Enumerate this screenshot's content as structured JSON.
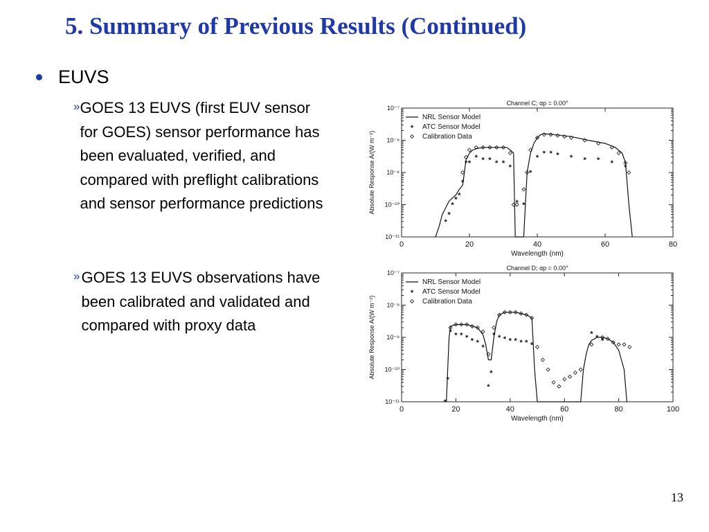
{
  "slide": {
    "title": "5. Summary of Previous Results (Continued)",
    "bullet": "EUVS",
    "subbullets": [
      {
        "marker": "»",
        "text": "GOES 13 EUVS (first EUV sensor for GOES) sensor performance has been evaluated, verified, and compared with preflight calibrations and sensor performance predictions"
      },
      {
        "marker": "»",
        "text": "GOES 13 EUVS observations have been calibrated and validated and compared with proxy data"
      }
    ],
    "page_number": "13"
  },
  "chart_data": [
    {
      "type": "line",
      "title": "Channel C; αp = 0.00°",
      "xlabel": "Wavelength (nm)",
      "ylabel": "Absolute Response A/(W m⁻²)",
      "xlim": [
        0,
        80
      ],
      "ylim": [
        1e-11,
        1e-07
      ],
      "y_scale": "log",
      "x_ticks": [
        "0",
        "20",
        "40",
        "60",
        "80"
      ],
      "y_ticks": [
        "10⁻⁷",
        "10⁻⁸",
        "10⁻⁹",
        "10⁻¹⁰",
        "10⁻¹¹"
      ],
      "legend_position": "top-left",
      "series": [
        {
          "name": "NRL Sensor Model",
          "style": "line",
          "x": [
            10,
            11,
            12,
            13,
            14,
            16,
            17,
            18,
            18.5,
            19,
            20,
            21,
            22,
            24,
            26,
            28,
            30,
            31,
            32,
            33,
            33.5,
            34,
            36,
            36.5,
            37,
            38,
            39,
            40,
            41,
            42,
            45,
            50,
            55,
            60,
            63,
            65,
            66,
            67,
            68
          ],
          "y": [
            1e-11,
            2e-11,
            5e-11,
            8e-11,
            1.3e-10,
            2e-10,
            3e-10,
            4e-10,
            1e-09,
            2.5e-09,
            4e-09,
            5e-09,
            5.5e-09,
            6e-09,
            6e-09,
            6e-09,
            6e-09,
            6e-09,
            5e-09,
            4e-09,
            1e-11,
            1e-11,
            1e-11,
            1e-10,
            1e-09,
            4e-09,
            8e-09,
            1.2e-08,
            1.5e-08,
            1.6e-08,
            1.5e-08,
            1.3e-08,
            1e-08,
            8e-09,
            6e-09,
            4e-09,
            2e-09,
            1e-10,
            1e-11
          ]
        },
        {
          "name": "ATC Sensor Model",
          "style": "marker-star",
          "x": [
            13,
            14,
            15,
            16,
            17,
            18,
            19,
            20,
            22,
            24,
            26,
            28,
            30,
            32,
            34,
            36,
            38,
            40,
            42,
            44,
            46,
            50,
            54,
            58,
            62,
            66
          ],
          "y": [
            3e-11,
            5e-11,
            1e-10,
            1.5e-10,
            2e-10,
            5e-10,
            2e-09,
            2e-09,
            3e-09,
            2.5e-09,
            2.5e-09,
            2e-09,
            2e-09,
            1.5e-09,
            1.2e-10,
            1e-10,
            1e-09,
            3e-09,
            4e-09,
            4e-09,
            3.5e-09,
            3e-09,
            2.5e-09,
            2.5e-09,
            2e-09,
            1.5e-09
          ]
        },
        {
          "name": "Calibration Data",
          "style": "marker-diamond",
          "x": [
            18,
            19,
            20,
            22,
            24,
            26,
            28,
            30,
            32,
            33,
            34,
            36,
            37,
            38,
            40,
            42,
            44,
            46,
            48,
            50,
            54,
            58,
            62,
            64,
            66,
            67
          ],
          "y": [
            1e-09,
            3e-09,
            5e-09,
            6e-09,
            6e-09,
            6e-09,
            6e-09,
            6e-09,
            4e-09,
            1e-10,
            1e-10,
            3e-10,
            1e-09,
            5e-09,
            1.2e-08,
            1.5e-08,
            1.5e-08,
            1.4e-08,
            1.3e-08,
            1.2e-08,
            1e-08,
            8e-09,
            6e-09,
            4e-09,
            2e-09,
            1e-09
          ]
        }
      ]
    },
    {
      "type": "line",
      "title": "Channel D; αp = 0.00°",
      "xlabel": "Wavelength (nm)",
      "ylabel": "Absolute Response A/(W m⁻²)",
      "xlim": [
        0,
        100
      ],
      "ylim": [
        1e-11,
        1e-07
      ],
      "y_scale": "log",
      "x_ticks": [
        "0",
        "20",
        "40",
        "60",
        "80",
        "100"
      ],
      "y_ticks": [
        "10⁻⁷",
        "10⁻⁸",
        "10⁻⁹",
        "10⁻¹⁰",
        "10⁻¹¹"
      ],
      "legend_position": "top-left",
      "series": [
        {
          "name": "NRL Sensor Model",
          "style": "line",
          "x": [
            16.5,
            17,
            17.5,
            18,
            20,
            24,
            28,
            30,
            31,
            32,
            33,
            34,
            35,
            36,
            38,
            42,
            46,
            48,
            49,
            50,
            66,
            67,
            68,
            69,
            70,
            72,
            74,
            76,
            78,
            80,
            82,
            83
          ],
          "y": [
            1e-11,
            1e-10,
            1e-09,
            2.2e-09,
            2.5e-09,
            2.5e-09,
            2e-09,
            1.2e-09,
            6e-10,
            2e-10,
            2e-10,
            1e-09,
            3e-09,
            5e-09,
            6e-09,
            6e-09,
            5e-09,
            4e-09,
            1e-10,
            1e-11,
            1e-11,
            1e-10,
            3e-10,
            6e-10,
            8e-10,
            1e-09,
            1e-09,
            9e-10,
            7e-10,
            4e-10,
            1e-10,
            1e-11
          ]
        },
        {
          "name": "ATC Sensor Model",
          "style": "marker-star",
          "x": [
            16,
            17,
            18,
            20,
            22,
            24,
            26,
            28,
            30,
            32,
            33,
            34,
            36,
            38,
            40,
            42,
            44,
            46,
            48,
            70,
            72,
            74
          ],
          "y": [
            1e-11,
            5e-11,
            1.5e-09,
            1.2e-09,
            1.2e-09,
            1e-09,
            8e-10,
            7e-10,
            5e-10,
            3e-11,
            8e-11,
            1.2e-09,
            1e-09,
            9e-10,
            8e-10,
            8e-10,
            7e-10,
            7e-10,
            6e-10,
            1.3e-09,
            1e-09,
            8e-10
          ]
        },
        {
          "name": "Calibration Data",
          "style": "marker-diamond",
          "x": [
            18,
            20,
            22,
            24,
            26,
            28,
            30,
            32,
            34,
            36,
            38,
            40,
            42,
            44,
            46,
            48,
            50,
            52,
            54,
            56,
            58,
            60,
            62,
            64,
            66,
            70,
            74,
            76,
            78,
            80,
            82,
            84
          ],
          "y": [
            2e-09,
            2.5e-09,
            2.5e-09,
            2.5e-09,
            2.2e-09,
            2e-09,
            1.5e-09,
            3e-10,
            2e-09,
            5e-09,
            6e-09,
            6e-09,
            6e-09,
            5.5e-09,
            5e-09,
            4e-09,
            5e-10,
            2e-10,
            1e-10,
            4e-11,
            3e-11,
            5e-11,
            6e-11,
            8e-11,
            1e-10,
            6e-10,
            1e-09,
            9e-10,
            7e-10,
            6e-10,
            6e-10,
            5e-10
          ]
        }
      ]
    }
  ]
}
